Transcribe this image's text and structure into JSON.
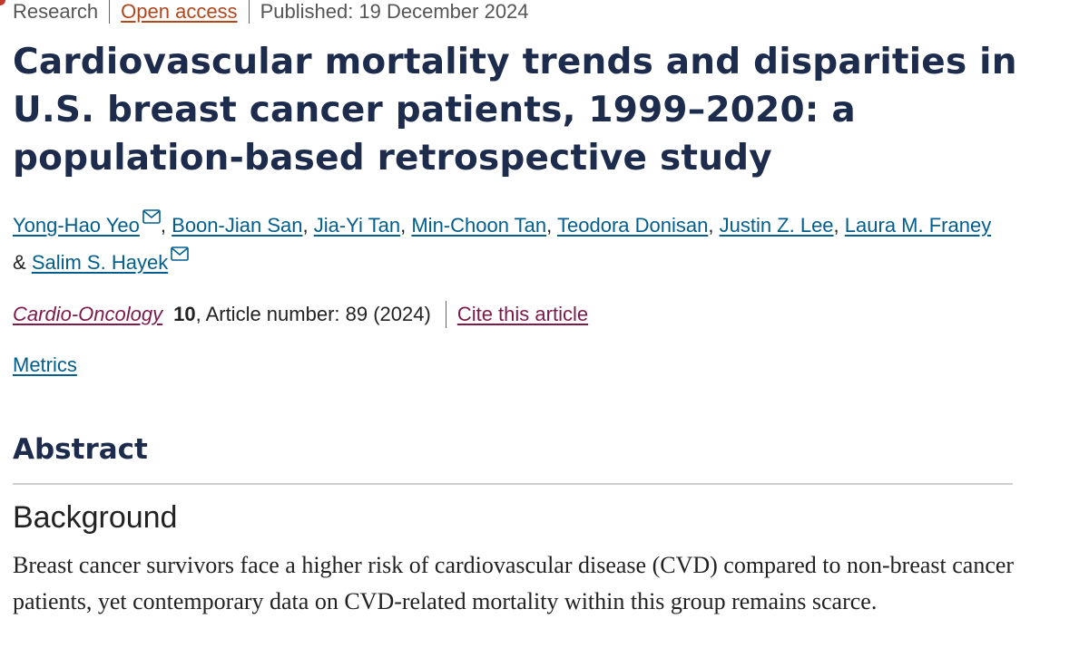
{
  "article": {
    "type": "Research",
    "access": "Open access",
    "published": "Published: 19 December 2024",
    "title": "Cardiovascular mortality trends and disparities in U.S. breast cancer patients, 1999–2020: a population-based retrospective study"
  },
  "authors": [
    {
      "name": "Yong-Hao Yeo",
      "has_email": true
    },
    {
      "name": "Boon-Jian San",
      "has_email": false
    },
    {
      "name": "Jia-Yi Tan",
      "has_email": false
    },
    {
      "name": "Min-Choon Tan",
      "has_email": false
    },
    {
      "name": "Teodora Donisan",
      "has_email": false
    },
    {
      "name": "Justin Z. Lee",
      "has_email": false
    },
    {
      "name": "Laura M. Franey",
      "has_email": false
    },
    {
      "name": "Salim S. Hayek",
      "has_email": true
    }
  ],
  "author_separator": ",",
  "author_last_separator": "&",
  "citation": {
    "journal": "Cardio-Oncology",
    "volume": "10",
    "article_info": ", Article number: 89 (2024)",
    "cite_label": "Cite this article"
  },
  "metrics_label": "Metrics",
  "abstract": {
    "heading": "Abstract",
    "sections": [
      {
        "heading": "Background",
        "text": "Breast cancer survivors face a higher risk of cardiovascular disease (CVD) compared to non-breast cancer patients, yet contemporary data on CVD-related mortality within this group remains scarce."
      }
    ]
  },
  "colors": {
    "title": "#1d2c4d",
    "link": "#025e8d",
    "journal_link": "#7d1a4b",
    "open_access": "#b1471d"
  },
  "icons": {
    "email": "envelope-icon"
  }
}
